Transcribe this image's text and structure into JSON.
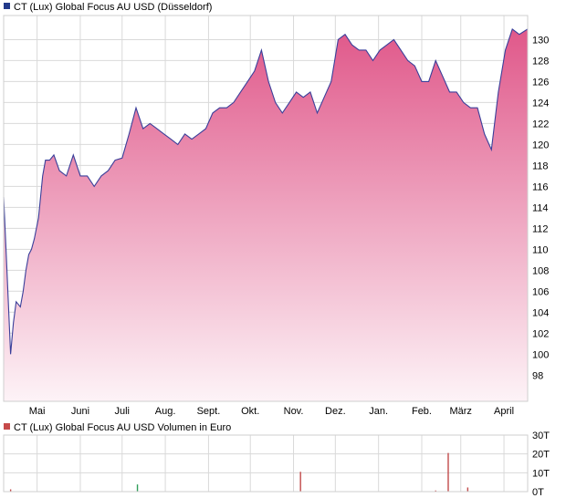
{
  "chart_data": [
    {
      "type": "area",
      "title": "CT (Lux) Global Focus AU USD (Düsseldorf)",
      "colors": {
        "line": "#3a3f9a",
        "fill_top": "#e0588a",
        "fill_bottom": "#fdf3f7",
        "legend_swatch": "#223a8a"
      },
      "grid": true,
      "ylim": [
        95.5,
        132.3
      ],
      "y_ticks": [
        98,
        100,
        102,
        104,
        106,
        108,
        110,
        112,
        114,
        116,
        118,
        120,
        122,
        124,
        126,
        128,
        130
      ],
      "x_tick_labels": [
        "Mai",
        "Juni",
        "Juli",
        "Aug.",
        "Sept.",
        "Okt.",
        "Nov.",
        "Dez.",
        "Jan.",
        "Feb.",
        "März",
        "April"
      ],
      "x_ticks_day": [
        24,
        55,
        85,
        116,
        147,
        177,
        208,
        238,
        269,
        300,
        328,
        359
      ],
      "x_range_day": [
        0,
        376
      ],
      "series": [
        {
          "x_day": [
            0,
            2,
            5,
            7,
            9,
            12,
            14,
            16,
            18,
            20,
            22,
            25,
            28,
            30,
            33,
            36,
            40,
            45,
            50,
            55,
            60,
            65,
            70,
            75,
            80,
            85,
            90,
            95,
            100,
            105,
            110,
            115,
            120,
            125,
            130,
            135,
            140,
            145,
            150,
            155,
            160,
            165,
            170,
            175,
            180,
            185,
            190,
            195,
            200,
            205,
            210,
            215,
            220,
            225,
            230,
            235,
            240,
            245,
            250,
            255,
            260,
            265,
            270,
            275,
            280,
            285,
            290,
            295,
            300,
            305,
            310,
            315,
            320,
            325,
            330,
            335,
            340,
            345,
            350,
            355,
            360,
            365,
            370,
            376
          ],
          "values": [
            115,
            109,
            100,
            103,
            105,
            104.5,
            106,
            108,
            109.5,
            110,
            111,
            113,
            117,
            118.5,
            118.5,
            119,
            117.5,
            117,
            119,
            117,
            117,
            116,
            117,
            117.5,
            118.5,
            118.7,
            121,
            123.5,
            121.5,
            122,
            121.5,
            121,
            120.5,
            120,
            121,
            120.5,
            121,
            121.5,
            123,
            123.5,
            123.5,
            124,
            125,
            126,
            127,
            129,
            126,
            124,
            123,
            124,
            125,
            124.5,
            125,
            123,
            124.5,
            126,
            130,
            130.5,
            129.5,
            129,
            129,
            128,
            129,
            129.5,
            130,
            129,
            128,
            127.5,
            126,
            126,
            128,
            126.5,
            125,
            125,
            124,
            123.5,
            123.5,
            121,
            119.5,
            125,
            129,
            131,
            130.5,
            131
          ]
        }
      ]
    },
    {
      "type": "bar",
      "title": "CT (Lux) Global Focus AU USD Volumen in Euro",
      "colors": {
        "bar_up": "#c24a4a",
        "bar_green": "#2e9e5a",
        "legend_swatch": "#c64a4a"
      },
      "ylim": [
        0,
        30
      ],
      "y_tick_values": [
        0,
        10,
        20,
        30
      ],
      "y_tick_labels": [
        "0T",
        "10T",
        "20T",
        "30T"
      ],
      "x_range_day": [
        0,
        376
      ],
      "bars": [
        {
          "x_day": 5,
          "value": 1.2,
          "color": "red"
        },
        {
          "x_day": 96,
          "value": 3.8,
          "color": "green"
        },
        {
          "x_day": 213,
          "value": 10.5,
          "color": "red"
        },
        {
          "x_day": 310,
          "value": 0.6,
          "color": "red"
        },
        {
          "x_day": 319,
          "value": 20.5,
          "color": "red"
        },
        {
          "x_day": 333,
          "value": 2.2,
          "color": "red"
        }
      ]
    }
  ]
}
